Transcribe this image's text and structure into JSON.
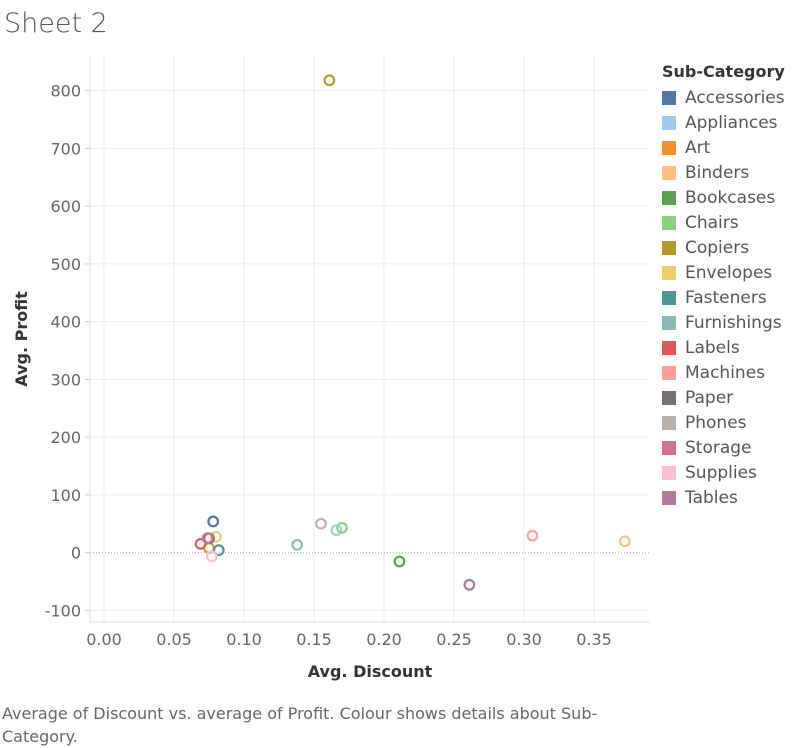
{
  "page": {
    "title": "Sheet 2"
  },
  "caption": "Average of Discount vs. average of Profit.  Colour shows details about Sub-Category.",
  "chart_data": {
    "type": "scatter",
    "xlabel": "Avg. Discount",
    "ylabel": "Avg. Profit",
    "xlim": [
      -0.01,
      0.39
    ],
    "ylim": [
      -120,
      860
    ],
    "x_ticks": [
      "0.00",
      "0.05",
      "0.10",
      "0.15",
      "0.20",
      "0.25",
      "0.30",
      "0.35"
    ],
    "x_tick_values": [
      0.0,
      0.05,
      0.1,
      0.15,
      0.2,
      0.25,
      0.3,
      0.35
    ],
    "y_ticks": [
      "800",
      "700",
      "600",
      "500",
      "400",
      "300",
      "200",
      "100",
      "0",
      "-100"
    ],
    "y_tick_values": [
      800,
      700,
      600,
      500,
      400,
      300,
      200,
      100,
      0,
      -100
    ],
    "grid": true,
    "legend_title": "Sub-Category",
    "legend_position": "right",
    "marker": "hollow-circle",
    "series": [
      {
        "name": "Accessories",
        "color": "#4e79a7",
        "x": 0.078,
        "y": 54.1
      },
      {
        "name": "Appliances",
        "color": "#a0cbe8",
        "x": 0.166,
        "y": 38.9
      },
      {
        "name": "Art",
        "color": "#f28e2b",
        "x": 0.075,
        "y": 8.2
      },
      {
        "name": "Binders",
        "color": "#ffbe7d",
        "x": 0.372,
        "y": 19.8
      },
      {
        "name": "Bookcases",
        "color": "#59a14f",
        "x": 0.211,
        "y": -15.2
      },
      {
        "name": "Chairs",
        "color": "#8cd17d",
        "x": 0.17,
        "y": 43.1
      },
      {
        "name": "Copiers",
        "color": "#b6992d",
        "x": 0.161,
        "y": 817.9
      },
      {
        "name": "Envelopes",
        "color": "#f1ce63",
        "x": 0.08,
        "y": 27.4
      },
      {
        "name": "Fasteners",
        "color": "#499894",
        "x": 0.082,
        "y": 4.4
      },
      {
        "name": "Furnishings",
        "color": "#86bcb6",
        "x": 0.138,
        "y": 13.6
      },
      {
        "name": "Labels",
        "color": "#e15759",
        "x": 0.069,
        "y": 15.2
      },
      {
        "name": "Machines",
        "color": "#ff9d9a",
        "x": 0.306,
        "y": 29.4
      },
      {
        "name": "Paper",
        "color": "#79706e",
        "x": 0.075,
        "y": 24.9
      },
      {
        "name": "Phones",
        "color": "#bab0ac",
        "x": 0.155,
        "y": 50.1
      },
      {
        "name": "Storage",
        "color": "#d37295",
        "x": 0.074,
        "y": 25.2
      },
      {
        "name": "Supplies",
        "color": "#fabfd2",
        "x": 0.077,
        "y": -6.3
      },
      {
        "name": "Tables",
        "color": "#b07aa1",
        "x": 0.261,
        "y": -55.6
      }
    ]
  }
}
